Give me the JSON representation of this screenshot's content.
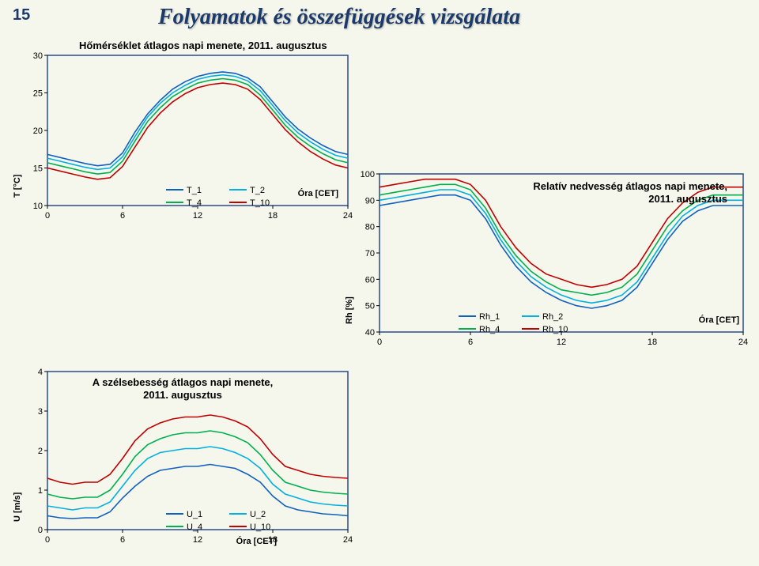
{
  "slide_number": "15",
  "main_title": "Folyamatok és összefüggések vizsgálata",
  "background_color": "#f5f7ec",
  "border_color": "#2a4a8a",
  "charts": {
    "temp": {
      "title": "Hőmérséklet átlagos napi menete,  2011. augusztus",
      "ylabel": "T [°C]",
      "xlabel": "Óra [CET]",
      "ylim": [
        10,
        30
      ],
      "ytick_step": 5,
      "xlim": [
        0,
        24
      ],
      "xtick_step": 6,
      "series": [
        {
          "name": "T_1",
          "color": "#1060c0",
          "y": [
            16.8,
            16.4,
            16.0,
            15.6,
            15.3,
            15.5,
            17.0,
            19.8,
            22.2,
            24.0,
            25.5,
            26.5,
            27.2,
            27.6,
            27.8,
            27.6,
            27.0,
            25.8,
            23.8,
            21.8,
            20.2,
            19.0,
            18.0,
            17.2,
            16.8
          ]
        },
        {
          "name": "T_2",
          "color": "#00b0e0",
          "y": [
            16.3,
            15.9,
            15.5,
            15.1,
            14.8,
            15.0,
            16.5,
            19.2,
            21.8,
            23.6,
            25.0,
            26.0,
            26.8,
            27.2,
            27.4,
            27.2,
            26.6,
            25.3,
            23.3,
            21.3,
            19.7,
            18.5,
            17.5,
            16.7,
            16.3
          ]
        },
        {
          "name": "T_4",
          "color": "#00b050",
          "y": [
            15.7,
            15.3,
            14.9,
            14.5,
            14.2,
            14.4,
            15.9,
            18.6,
            21.2,
            23.0,
            24.5,
            25.5,
            26.3,
            26.7,
            26.9,
            26.7,
            26.1,
            24.7,
            22.7,
            20.7,
            19.1,
            17.9,
            16.9,
            16.1,
            15.7
          ]
        },
        {
          "name": "T_10",
          "color": "#c00000",
          "y": [
            15.0,
            14.6,
            14.2,
            13.8,
            13.5,
            13.7,
            15.2,
            17.8,
            20.4,
            22.3,
            23.8,
            24.9,
            25.7,
            26.1,
            26.3,
            26.1,
            25.5,
            24.1,
            22.1,
            20.1,
            18.5,
            17.2,
            16.2,
            15.4,
            15.0
          ]
        }
      ]
    },
    "rh": {
      "title": "Relatív nedvesség átlagos napi menete, 2011. augusztus",
      "ylabel": "Rh [%]",
      "xlabel": "Óra [CET]",
      "ylim": [
        40,
        100
      ],
      "ytick_step": 10,
      "xlim": [
        0,
        24
      ],
      "xtick_step": 6,
      "series": [
        {
          "name": "Rh_1",
          "color": "#1060c0",
          "y": [
            88,
            89,
            90,
            91,
            92,
            92,
            90,
            83,
            73,
            65,
            59,
            55,
            52,
            50,
            49,
            50,
            52,
            57,
            66,
            75,
            82,
            86,
            88,
            88,
            88
          ]
        },
        {
          "name": "Rh_2",
          "color": "#00b0e0",
          "y": [
            90,
            91,
            92,
            93,
            94,
            94,
            92,
            85,
            75,
            67,
            61,
            57,
            54,
            52,
            51,
            52,
            54,
            59,
            68,
            77,
            84,
            88,
            90,
            90,
            90
          ]
        },
        {
          "name": "Rh_4",
          "color": "#00b050",
          "y": [
            92,
            93,
            94,
            95,
            96,
            96,
            94,
            87,
            77,
            69,
            63,
            59,
            56,
            55,
            54,
            55,
            57,
            62,
            71,
            80,
            86,
            90,
            92,
            92,
            92
          ]
        },
        {
          "name": "Rh_10",
          "color": "#c00000",
          "y": [
            95,
            96,
            97,
            98,
            98,
            98,
            96,
            90,
            80,
            72,
            66,
            62,
            60,
            58,
            57,
            58,
            60,
            65,
            74,
            83,
            89,
            93,
            95,
            95,
            95
          ]
        }
      ]
    },
    "wind": {
      "title": "A szélsebesség átlagos napi menete, 2011. augusztus",
      "ylabel": "U [m/s]",
      "xlabel": "Óra [CET]",
      "ylim": [
        0,
        4
      ],
      "ytick_step": 1,
      "xlim": [
        0,
        24
      ],
      "xtick_step": 6,
      "series": [
        {
          "name": "U_1",
          "color": "#1060c0",
          "y": [
            0.35,
            0.3,
            0.28,
            0.3,
            0.3,
            0.45,
            0.8,
            1.1,
            1.35,
            1.5,
            1.55,
            1.6,
            1.6,
            1.65,
            1.6,
            1.55,
            1.4,
            1.2,
            0.85,
            0.6,
            0.5,
            0.45,
            0.4,
            0.38,
            0.35
          ]
        },
        {
          "name": "U_2",
          "color": "#00b0e0",
          "y": [
            0.6,
            0.55,
            0.5,
            0.55,
            0.55,
            0.7,
            1.1,
            1.5,
            1.8,
            1.95,
            2.0,
            2.05,
            2.05,
            2.1,
            2.05,
            1.95,
            1.8,
            1.55,
            1.15,
            0.9,
            0.8,
            0.7,
            0.65,
            0.62,
            0.6
          ]
        },
        {
          "name": "U_4",
          "color": "#00b050",
          "y": [
            0.9,
            0.82,
            0.78,
            0.82,
            0.82,
            1.0,
            1.4,
            1.85,
            2.15,
            2.3,
            2.4,
            2.45,
            2.45,
            2.5,
            2.45,
            2.35,
            2.2,
            1.9,
            1.5,
            1.2,
            1.1,
            1.0,
            0.95,
            0.92,
            0.9
          ]
        },
        {
          "name": "U_10",
          "color": "#c00000",
          "y": [
            1.3,
            1.2,
            1.15,
            1.2,
            1.2,
            1.4,
            1.8,
            2.25,
            2.55,
            2.7,
            2.8,
            2.85,
            2.85,
            2.9,
            2.85,
            2.75,
            2.6,
            2.3,
            1.9,
            1.6,
            1.5,
            1.4,
            1.35,
            1.32,
            1.3
          ]
        }
      ]
    }
  }
}
